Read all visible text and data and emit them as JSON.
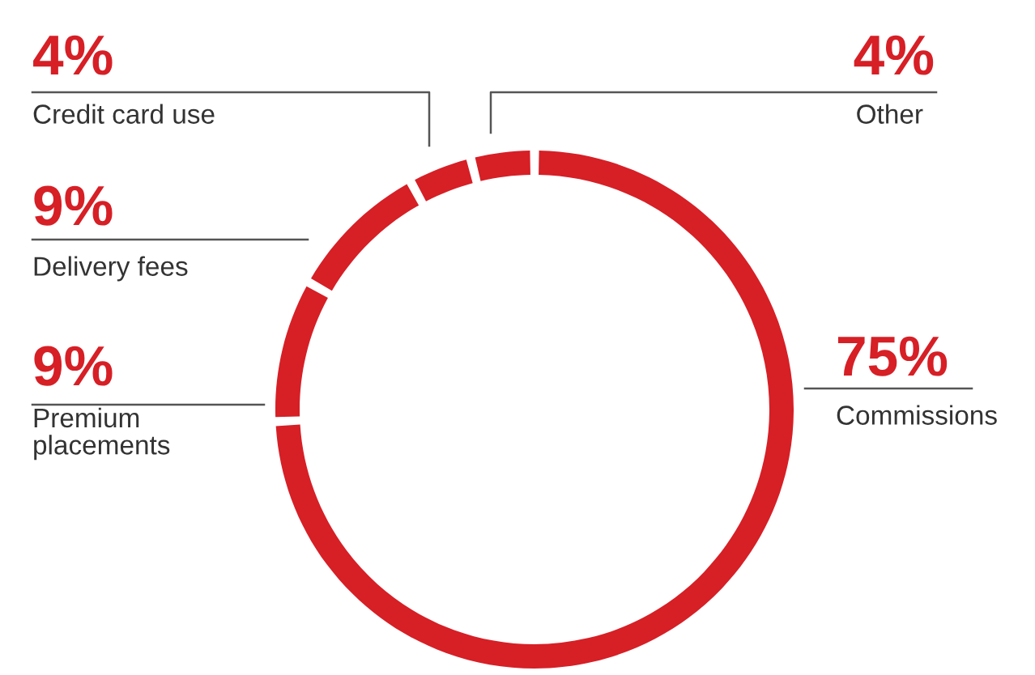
{
  "chart_data": {
    "type": "donut",
    "categories": [
      "Commissions",
      "Premium\nplacements",
      "Delivery fees",
      "Credit card use",
      "Other"
    ],
    "values": [
      75,
      9,
      9,
      4,
      4
    ],
    "value_labels": [
      "75%",
      "9%",
      "9%",
      "4%",
      "4%"
    ],
    "colors": [
      "#d71f26",
      "#d71f26",
      "#d71f26",
      "#d71f26",
      "#d71f26"
    ]
  }
}
